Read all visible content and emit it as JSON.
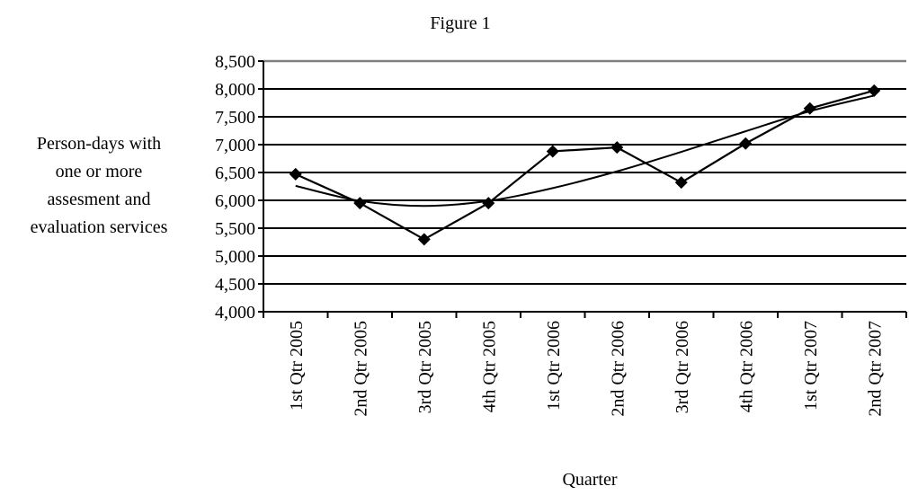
{
  "chart_data": {
    "type": "line",
    "title": "Figure 1",
    "xlabel": "Quarter",
    "ylabel_lines": [
      "Person-days with",
      "one or more",
      "assesment and",
      "evaluation services"
    ],
    "categories": [
      "1st Qtr 2005",
      "2nd Qtr 2005",
      "3rd Qtr 2005",
      "4th Qtr 2005",
      "1st Qtr 2006",
      "2nd Qtr 2006",
      "3rd Qtr 2006",
      "4th Qtr 2006",
      "1st Qtr 2007",
      "2nd Qtr 2007"
    ],
    "series": [
      {
        "values": [
          6470,
          5950,
          5300,
          5950,
          6880,
          6950,
          6320,
          7020,
          7650,
          7970
        ],
        "marker": "diamond",
        "color": "#000000"
      },
      {
        "kind": "trendline",
        "values": [
          6260,
          5990,
          5900,
          5990,
          6220,
          6520,
          6870,
          7240,
          7600,
          7880
        ],
        "color": "#000000"
      }
    ],
    "ylim": [
      4000,
      8500
    ],
    "yticks": [
      4000,
      4500,
      5000,
      5500,
      6000,
      6500,
      7000,
      7500,
      8000,
      8500
    ],
    "ytick_labels": [
      "4,000",
      "4,500",
      "5,000",
      "5,500",
      "6,000",
      "6,500",
      "7,000",
      "7,500",
      "8,000",
      "8,500"
    ],
    "grid": true,
    "legend": "none"
  }
}
